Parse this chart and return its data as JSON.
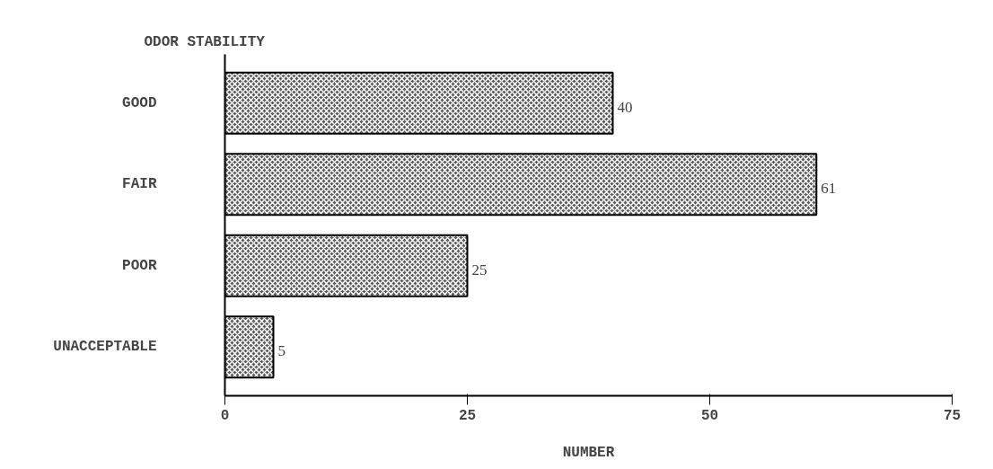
{
  "chart_data": {
    "type": "bar",
    "orientation": "horizontal",
    "title": "ODOR STABILITY",
    "xlabel": "NUMBER",
    "categories": [
      "GOOD",
      "FAIR",
      "POOR",
      "UNACCEPTABLE"
    ],
    "values": [
      40,
      61,
      25,
      5
    ],
    "color": "#5a5a5a",
    "xlim": [
      0,
      75
    ],
    "xticks": [
      0,
      25,
      50,
      75
    ],
    "data_labels": true,
    "grid": false
  }
}
